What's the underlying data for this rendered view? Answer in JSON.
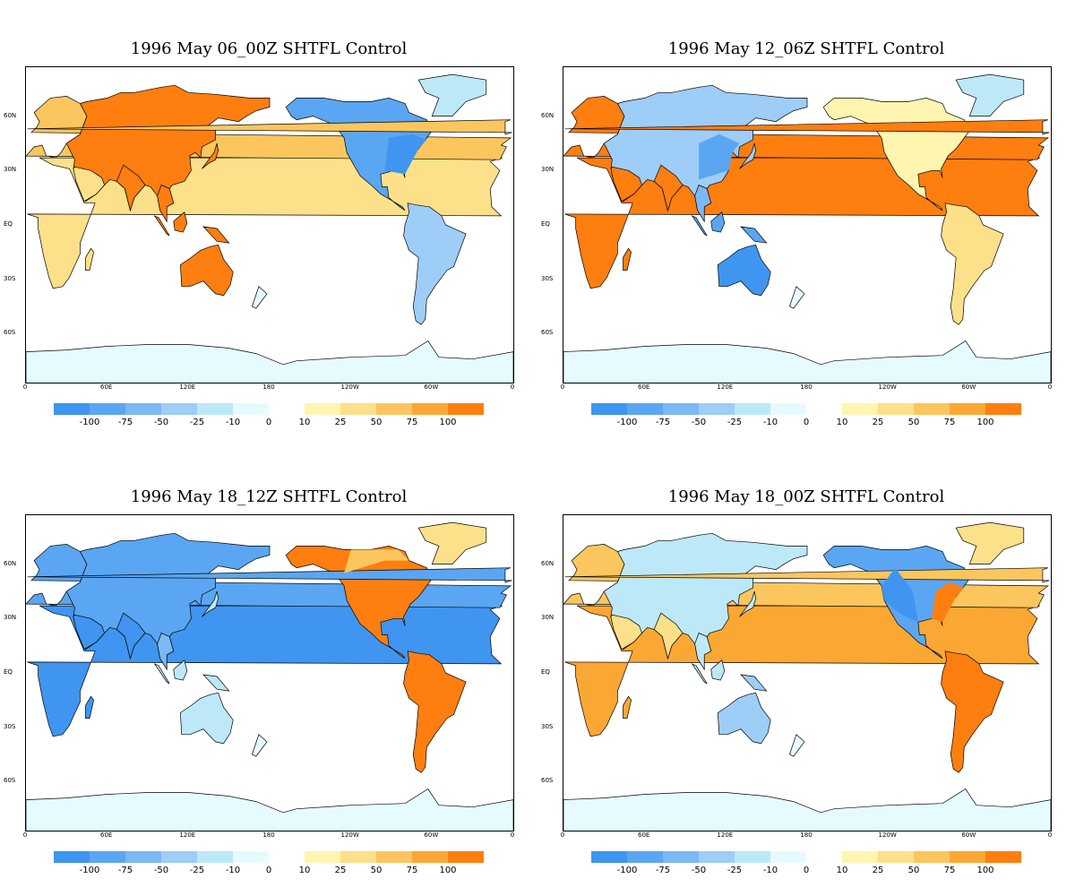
{
  "panels": [
    {
      "title": "1996 May 06_00Z SHTFL Control",
      "pattern": "p1"
    },
    {
      "title": "1996 May 12_06Z SHTFL Control",
      "pattern": "p2"
    },
    {
      "title": "1996 May 18_12Z SHTFL Control",
      "pattern": "p3"
    },
    {
      "title": "1996 May 18_00Z SHTFL Control",
      "pattern": "p4"
    }
  ],
  "axes": {
    "lon_ticks": [
      "0",
      "60E",
      "120E",
      "180",
      "120W",
      "60W",
      "0"
    ],
    "lat_ticks": [
      "60N",
      "30N",
      "EQ",
      "30S",
      "60S"
    ]
  },
  "colorbar": {
    "negative_colors": [
      "#3f95ef",
      "#5aa6f2",
      "#7cb8f5",
      "#9ecdf7",
      "#bde8f7",
      "#e6fbff"
    ],
    "positive_colors": [
      "#fff5b0",
      "#fde08a",
      "#fcc65e",
      "#fba733",
      "#fe7e10"
    ],
    "negative_labels": [
      "-100",
      "-75",
      "-50",
      "-25",
      "-10",
      "0"
    ],
    "positive_labels": [
      "10",
      "25",
      "50",
      "75",
      "100"
    ]
  }
}
